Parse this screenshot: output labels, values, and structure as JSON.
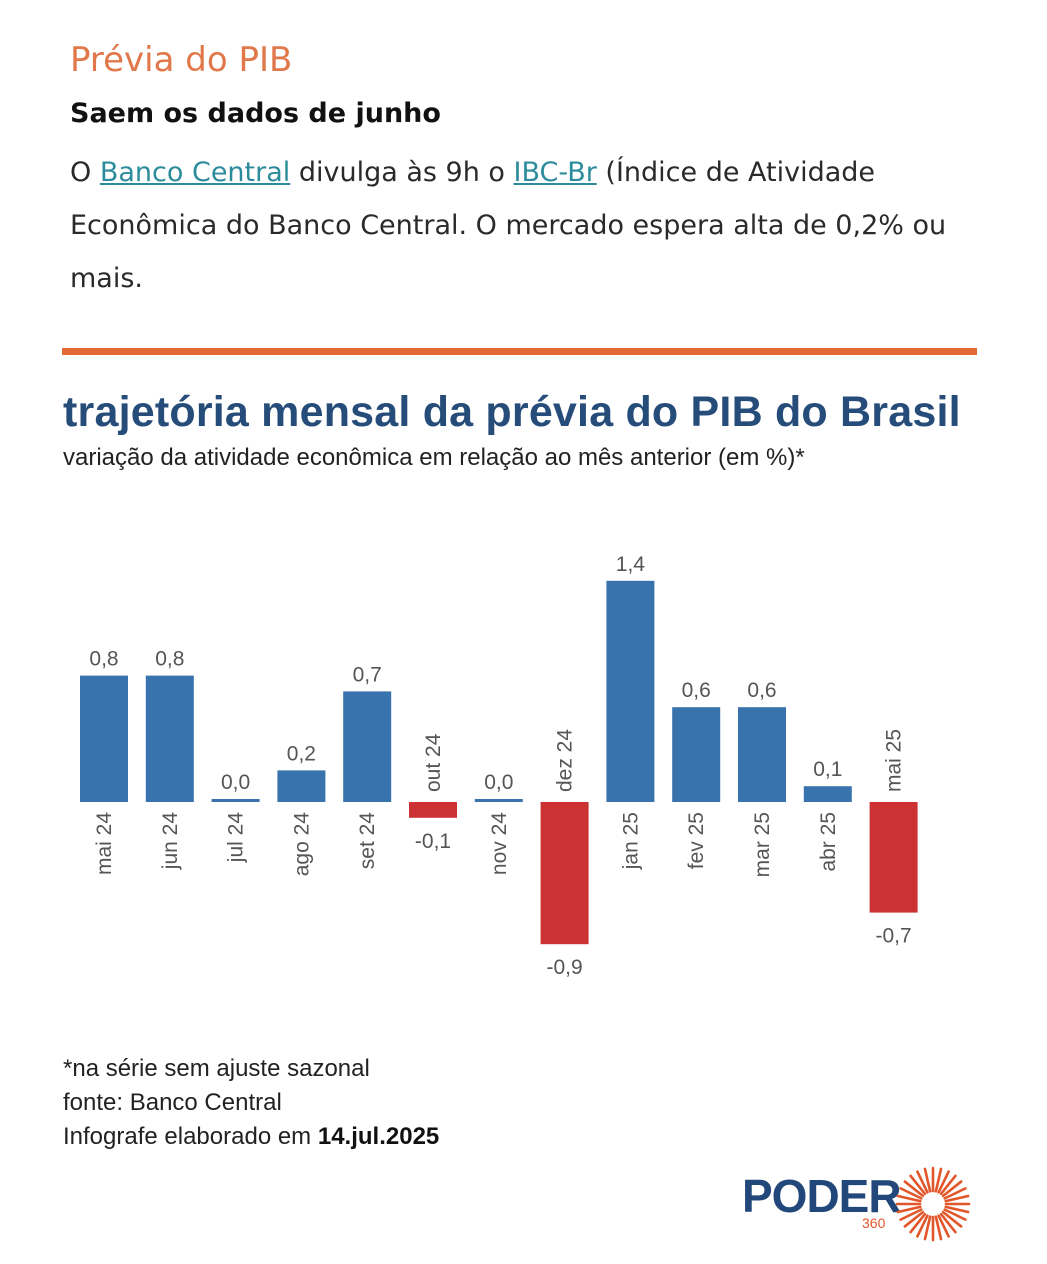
{
  "header": {
    "kicker": "Prévia do PIB",
    "headline": "Saem os dados de junho",
    "body": {
      "part1": "O ",
      "link1": "Banco Central",
      "part2": " divulga às 9h o ",
      "link2": "IBC-Br",
      "part3": " (Índice de Atividade Econômica do Banco Central. O mercado espera alta de 0,2% ou mais."
    }
  },
  "colors": {
    "kicker": "#e0784a",
    "divider": "#e26a32",
    "title": "#264c7a",
    "positive": "#3873ae",
    "negative": "#cc3233",
    "link": "#2c8c9c"
  },
  "chart_data": {
    "type": "bar",
    "title": "trajetória mensal da prévia do PIB do Brasil",
    "subtitle": "variação da atividade econômica em relação ao mês anterior (em %)*",
    "categories": [
      "mai 24",
      "jun 24",
      "jul 24",
      "ago 24",
      "set 24",
      "out 24",
      "nov 24",
      "dez 24",
      "jan 25",
      "fev 25",
      "mar 25",
      "abr 25",
      "mai 25"
    ],
    "values": [
      0.8,
      0.8,
      0.0,
      0.2,
      0.7,
      -0.1,
      0.0,
      -0.9,
      1.4,
      0.6,
      0.6,
      0.1,
      -0.7
    ],
    "value_labels": [
      "0,8",
      "0,8",
      "0,0",
      "0,2",
      "0,7",
      "-0,1",
      "0,0",
      "-0,9",
      "1,4",
      "0,6",
      "0,6",
      "0,1",
      "-0,7"
    ],
    "grid": false,
    "legend": "none"
  },
  "footer": {
    "note": "*na série sem ajuste sazonal",
    "source": "fonte: Banco Central",
    "date_prefix": "Infografe elaborado em ",
    "date": "14.jul.2025"
  },
  "logo": {
    "word": "PODER",
    "sub": "360"
  }
}
